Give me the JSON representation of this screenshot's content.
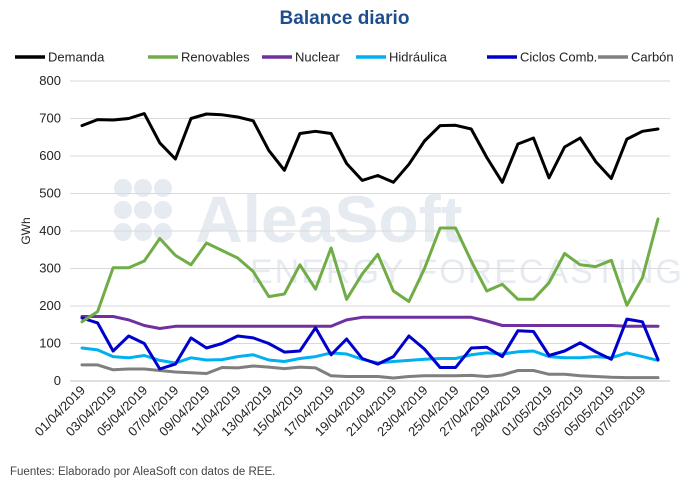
{
  "chart_data": {
    "type": "line",
    "title": "Balance diario",
    "ylabel": "GWh",
    "xlabel": "",
    "ylim": [
      0,
      800
    ],
    "yticks": [
      0,
      100,
      200,
      300,
      400,
      500,
      600,
      700,
      800
    ],
    "grid": true,
    "legend_position": "top",
    "x": [
      "01/04/2019",
      "02/04/2019",
      "03/04/2019",
      "04/04/2019",
      "05/04/2019",
      "06/04/2019",
      "07/04/2019",
      "08/04/2019",
      "09/04/2019",
      "10/04/2019",
      "11/04/2019",
      "12/04/2019",
      "13/04/2019",
      "14/04/2019",
      "15/04/2019",
      "16/04/2019",
      "17/04/2019",
      "18/04/2019",
      "19/04/2019",
      "20/04/2019",
      "21/04/2019",
      "22/04/2019",
      "23/04/2019",
      "24/04/2019",
      "25/04/2019",
      "26/04/2019",
      "27/04/2019",
      "28/04/2019",
      "29/04/2019",
      "30/04/2019",
      "01/05/2019",
      "02/05/2019",
      "03/05/2019",
      "04/05/2019",
      "05/05/2019",
      "06/05/2019",
      "07/05/2019",
      "08/05/2019"
    ],
    "tick_labels": [
      "01/04/2019",
      "03/04/2019",
      "05/04/2019",
      "07/04/2019",
      "09/04/2019",
      "11/04/2019",
      "13/04/2019",
      "15/04/2019",
      "17/04/2019",
      "19/04/2019",
      "21/04/2019",
      "23/04/2019",
      "25/04/2019",
      "27/04/2019",
      "29/04/2019",
      "01/05/2019",
      "03/05/2019",
      "05/05/2019",
      "07/05/2019"
    ],
    "series": [
      {
        "name": "Demanda",
        "color": "#000000",
        "values": [
          681,
          697,
          696,
          700,
          713,
          635,
          592,
          700,
          712,
          710,
          704,
          694,
          615,
          562,
          660,
          666,
          660,
          580,
          535,
          548,
          530,
          578,
          640,
          681,
          682,
          672,
          596,
          530,
          632,
          648,
          542,
          624,
          648,
          585,
          540,
          645,
          666,
          672
        ]
      },
      {
        "name": "Renovables",
        "color": "#70ad47",
        "values": [
          158,
          185,
          302,
          302,
          320,
          380,
          335,
          310,
          368,
          348,
          328,
          292,
          225,
          232,
          310,
          245,
          355,
          218,
          285,
          338,
          240,
          212,
          300,
          408,
          408,
          320,
          240,
          258,
          218,
          218,
          262,
          340,
          310,
          305,
          322,
          202,
          275,
          432
        ]
      },
      {
        "name": "Nuclear",
        "color": "#7030a0",
        "values": [
          172,
          172,
          172,
          163,
          148,
          140,
          146,
          146,
          146,
          146,
          146,
          146,
          146,
          146,
          146,
          146,
          146,
          163,
          170,
          170,
          170,
          170,
          170,
          170,
          170,
          170,
          160,
          148,
          148,
          148,
          148,
          148,
          148,
          148,
          148,
          146,
          146,
          146
        ]
      },
      {
        "name": "Hidráulica",
        "color": "#00b0f0",
        "values": [
          88,
          83,
          65,
          62,
          68,
          55,
          48,
          62,
          56,
          57,
          65,
          70,
          56,
          52,
          60,
          65,
          75,
          72,
          58,
          48,
          52,
          55,
          58,
          60,
          60,
          70,
          75,
          72,
          78,
          80,
          65,
          62,
          62,
          65,
          62,
          75,
          65,
          55
        ]
      },
      {
        "name": "Ciclos Comb.",
        "color": "#0000cc",
        "values": [
          168,
          155,
          80,
          120,
          100,
          32,
          45,
          115,
          88,
          100,
          120,
          115,
          100,
          77,
          80,
          142,
          70,
          112,
          60,
          45,
          65,
          120,
          85,
          36,
          36,
          88,
          90,
          65,
          134,
          132,
          68,
          80,
          102,
          78,
          58,
          165,
          158,
          57
        ]
      },
      {
        "name": "Carbón",
        "color": "#7f7f7f",
        "values": [
          43,
          43,
          30,
          32,
          32,
          28,
          24,
          22,
          20,
          36,
          35,
          40,
          37,
          33,
          37,
          35,
          14,
          12,
          12,
          12,
          8,
          12,
          14,
          14,
          14,
          15,
          12,
          16,
          28,
          28,
          18,
          18,
          14,
          12,
          10,
          9,
          9,
          9
        ]
      }
    ],
    "watermark": "AleaSoft ENERGY FORECASTING",
    "source": "Fuentes: Elaborado por AleaSoft con datos de REE."
  }
}
